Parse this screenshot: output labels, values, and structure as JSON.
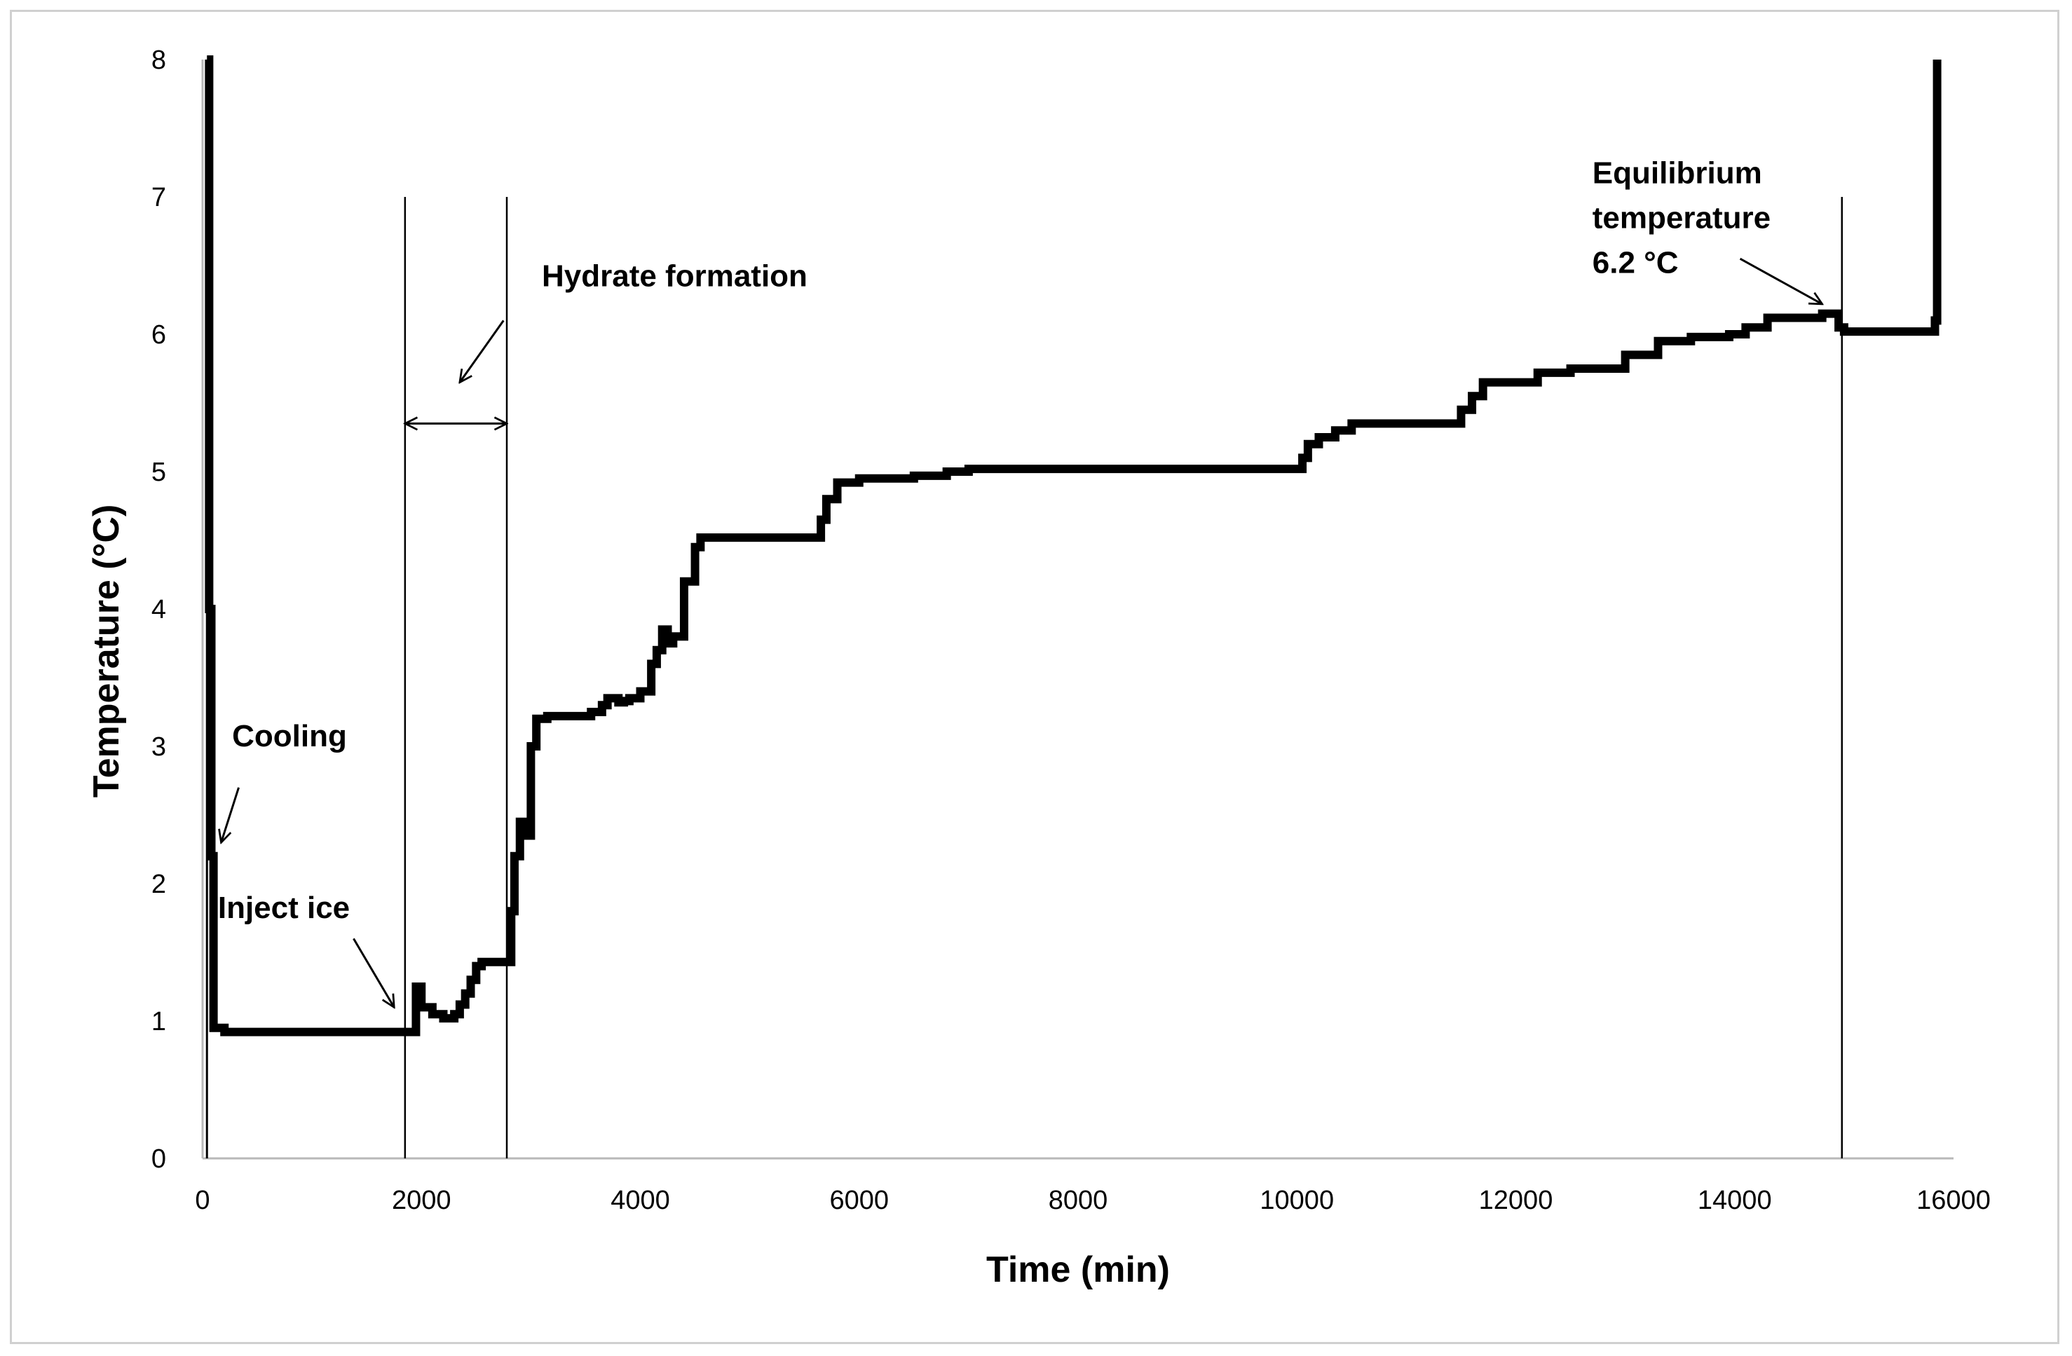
{
  "chart_data": {
    "type": "line",
    "title": "",
    "xlabel": "Time (min)",
    "ylabel": "Temperature (°C)",
    "xlim": [
      0,
      16000
    ],
    "ylim": [
      0,
      8
    ],
    "x_ticks": [
      0,
      2000,
      4000,
      6000,
      8000,
      10000,
      12000,
      14000,
      16000
    ],
    "y_ticks": [
      0,
      1,
      2,
      3,
      4,
      5,
      6,
      7,
      8
    ],
    "grid": false,
    "legend": "none",
    "series": [
      {
        "name": "Temperature",
        "color": "#000000",
        "x": [
          40,
          60,
          80,
          100,
          200,
          1000,
          1800,
          1900,
          1950,
          2000,
          2100,
          2200,
          2300,
          2350,
          2400,
          2450,
          2500,
          2550,
          2600,
          2700,
          2790,
          2820,
          2850,
          2900,
          2950,
          3000,
          3050,
          3150,
          3300,
          3400,
          3550,
          3650,
          3700,
          3800,
          3850,
          3900,
          4000,
          4100,
          4150,
          4200,
          4250,
          4300,
          4400,
          4500,
          4550,
          4600,
          4650,
          4700,
          5000,
          5600,
          5650,
          5700,
          5800,
          6000,
          6500,
          6800,
          7000,
          8000,
          9000,
          9800,
          10000,
          10050,
          10100,
          10200,
          10350,
          10500,
          11000,
          11400,
          11500,
          11600,
          11700,
          11900,
          12000,
          12200,
          12500,
          12800,
          13000,
          13300,
          13600,
          13950,
          14100,
          14300,
          14800,
          14950,
          15000,
          15800,
          15830,
          15850
        ],
        "y": [
          8,
          4,
          2.2,
          0.95,
          0.92,
          0.92,
          0.92,
          0.92,
          1.25,
          1.1,
          1.05,
          1.02,
          1.05,
          1.12,
          1.2,
          1.3,
          1.4,
          1.43,
          1.43,
          1.43,
          1.43,
          1.8,
          2.2,
          2.45,
          2.35,
          3.0,
          3.2,
          3.22,
          3.22,
          3.22,
          3.25,
          3.3,
          3.35,
          3.32,
          3.33,
          3.35,
          3.4,
          3.6,
          3.7,
          3.85,
          3.75,
          3.8,
          4.2,
          4.45,
          4.52,
          4.52,
          4.52,
          4.52,
          4.52,
          4.52,
          4.65,
          4.8,
          4.92,
          4.95,
          4.97,
          5.0,
          5.02,
          5.02,
          5.02,
          5.02,
          5.02,
          5.1,
          5.2,
          5.25,
          5.3,
          5.35,
          5.35,
          5.35,
          5.45,
          5.55,
          5.65,
          5.65,
          5.65,
          5.72,
          5.75,
          5.75,
          5.85,
          5.95,
          5.98,
          6.0,
          6.05,
          6.12,
          6.15,
          6.05,
          6.02,
          6.02,
          6.1,
          8
        ]
      }
    ],
    "vertical_lines": [
      1850,
      2780,
      14980
    ],
    "span_arrow": {
      "from": 1850,
      "to": 2780,
      "y": 5.35
    },
    "annotations": [
      {
        "text_lines": [
          "Hydrate formation"
        ],
        "text_at": [
          3100,
          6.35
        ],
        "arrow_from": [
          2750,
          6.1
        ],
        "arrow_to": [
          2350,
          5.65
        ]
      },
      {
        "text_lines": [
          "Cooling"
        ],
        "text_at": [
          270,
          3.0
        ],
        "arrow_from": [
          330,
          2.7
        ],
        "arrow_to": [
          170,
          2.3
        ]
      },
      {
        "text_lines": [
          "Inject ice"
        ],
        "text_at": [
          140,
          1.75
        ],
        "arrow_from": [
          1380,
          1.6
        ],
        "arrow_to": [
          1750,
          1.1
        ]
      },
      {
        "text_lines": [
          "Equilibrium",
          "temperature",
          "6.2 °C"
        ],
        "text_at": [
          12700,
          7.1
        ],
        "arrow_from": [
          14050,
          6.55
        ],
        "arrow_to": [
          14800,
          6.22
        ]
      }
    ]
  }
}
